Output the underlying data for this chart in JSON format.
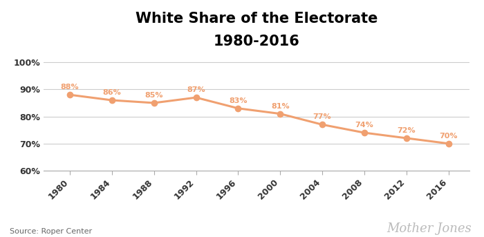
{
  "title_line1": "White Share of the Electorate",
  "title_line2": "1980-2016",
  "years": [
    1980,
    1984,
    1988,
    1992,
    1996,
    2000,
    2004,
    2008,
    2012,
    2016
  ],
  "values": [
    88,
    86,
    85,
    87,
    83,
    81,
    77,
    74,
    72,
    70
  ],
  "labels": [
    "88%",
    "86%",
    "85%",
    "87%",
    "83%",
    "81%",
    "77%",
    "74%",
    "72%",
    "70%"
  ],
  "line_color": "#F0A070",
  "marker_color": "#F0A070",
  "label_color": "#F0A070",
  "bg_color": "#FFFFFF",
  "grid_color": "#CCCCCC",
  "source_text": "Source: Roper Center",
  "brand_text": "Mother Jones",
  "ylim_min": 60,
  "ylim_max": 102,
  "yticks": [
    60,
    70,
    80,
    90,
    100
  ],
  "ytick_labels": [
    "60%",
    "70%",
    "80%",
    "90%",
    "100%"
  ]
}
